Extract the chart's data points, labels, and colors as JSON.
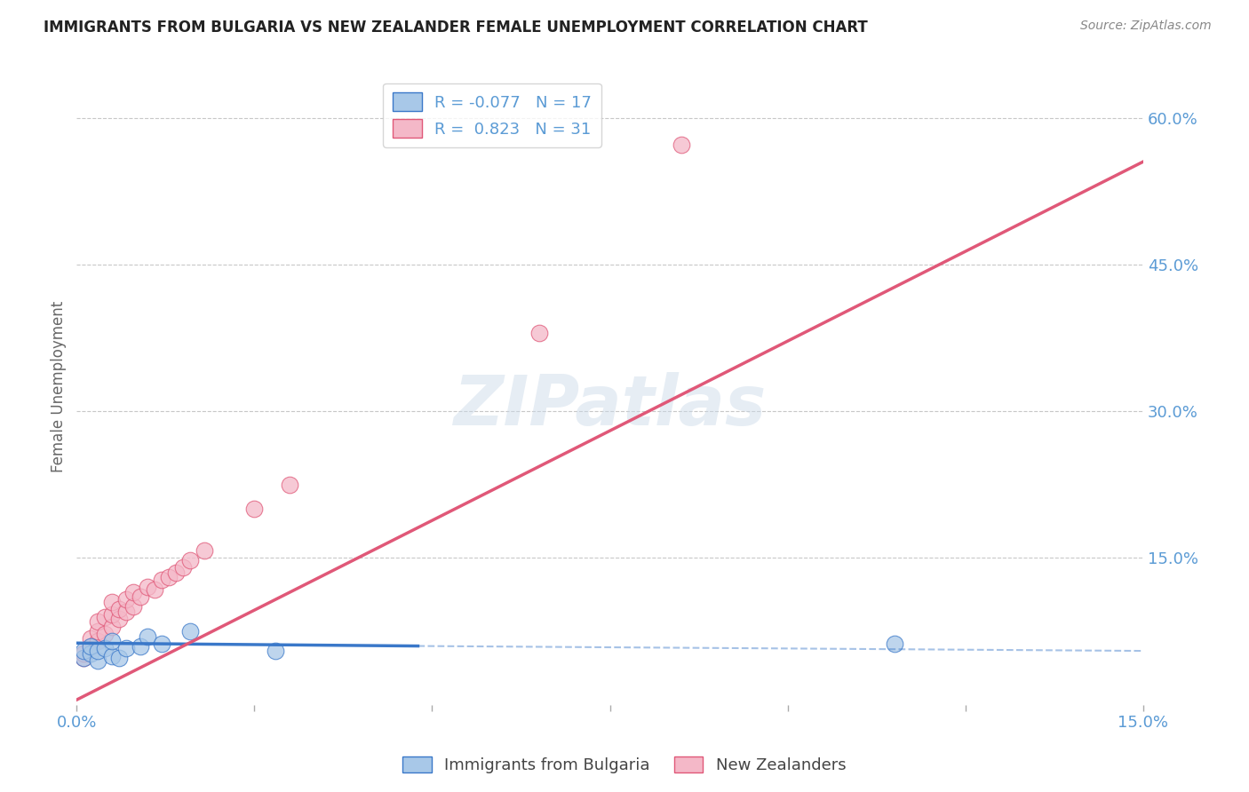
{
  "title": "IMMIGRANTS FROM BULGARIA VS NEW ZEALANDER FEMALE UNEMPLOYMENT CORRELATION CHART",
  "source": "Source: ZipAtlas.com",
  "ylabel": "Female Unemployment",
  "ylabel_right_ticks": [
    "60.0%",
    "45.0%",
    "30.0%",
    "15.0%"
  ],
  "ylabel_right_vals": [
    0.6,
    0.45,
    0.3,
    0.15
  ],
  "title_color": "#222222",
  "source_color": "#888888",
  "blue_color": "#a8c8e8",
  "pink_color": "#f4b8c8",
  "blue_line_color": "#3a78c9",
  "pink_line_color": "#e05878",
  "axis_label_color": "#5b9bd5",
  "R_blue": -0.077,
  "N_blue": 17,
  "R_pink": 0.823,
  "N_pink": 31,
  "blue_scatter_x": [
    0.001,
    0.001,
    0.002,
    0.002,
    0.003,
    0.003,
    0.004,
    0.005,
    0.005,
    0.006,
    0.007,
    0.009,
    0.01,
    0.012,
    0.016,
    0.028,
    0.115
  ],
  "blue_scatter_y": [
    0.048,
    0.055,
    0.052,
    0.06,
    0.045,
    0.055,
    0.058,
    0.05,
    0.065,
    0.048,
    0.058,
    0.06,
    0.07,
    0.062,
    0.075,
    0.055,
    0.062
  ],
  "pink_scatter_x": [
    0.001,
    0.001,
    0.002,
    0.002,
    0.003,
    0.003,
    0.003,
    0.004,
    0.004,
    0.005,
    0.005,
    0.005,
    0.006,
    0.006,
    0.007,
    0.007,
    0.008,
    0.008,
    0.009,
    0.01,
    0.011,
    0.012,
    0.013,
    0.014,
    0.015,
    0.016,
    0.018,
    0.025,
    0.03,
    0.065,
    0.085
  ],
  "pink_scatter_y": [
    0.048,
    0.052,
    0.06,
    0.068,
    0.065,
    0.075,
    0.085,
    0.072,
    0.09,
    0.08,
    0.092,
    0.105,
    0.088,
    0.098,
    0.095,
    0.108,
    0.1,
    0.115,
    0.11,
    0.12,
    0.118,
    0.128,
    0.13,
    0.135,
    0.14,
    0.148,
    0.158,
    0.2,
    0.225,
    0.38,
    0.572
  ],
  "xmin": 0.0,
  "xmax": 0.15,
  "ymin": 0.0,
  "ymax": 0.65,
  "pink_line_x0": 0.0,
  "pink_line_y0": 0.005,
  "pink_line_x1": 0.15,
  "pink_line_y1": 0.555,
  "blue_line_solid_x0": 0.0,
  "blue_line_solid_y0": 0.063,
  "blue_line_solid_x1": 0.048,
  "blue_line_solid_y1": 0.06,
  "blue_line_dash_x1": 0.15,
  "blue_line_dash_y1": 0.055,
  "watermark": "ZIPatlas",
  "legend_labels": [
    "Immigrants from Bulgaria",
    "New Zealanders"
  ],
  "background_color": "#ffffff",
  "grid_color": "#c8c8c8"
}
